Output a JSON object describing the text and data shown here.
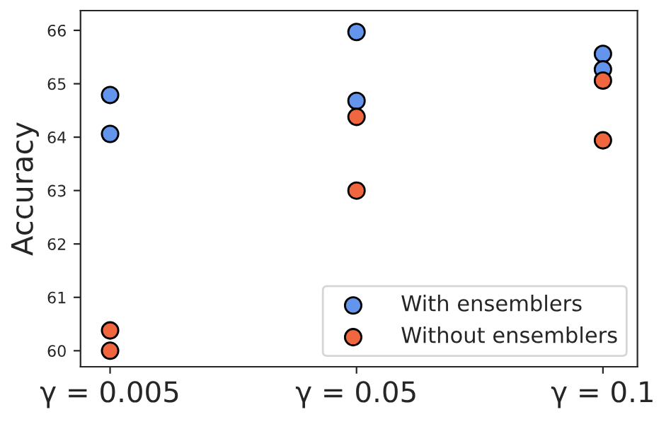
{
  "chart_data": {
    "type": "scatter",
    "ylabel": "Accuracy",
    "categories": [
      "γ = 0.005",
      "γ = 0.05",
      "γ = 0.1"
    ],
    "series": [
      {
        "name": "With ensemblers",
        "color": "#6495ed",
        "x": [
          "γ = 0.005",
          "γ = 0.005",
          "γ = 0.05",
          "γ = 0.05",
          "γ = 0.1",
          "γ = 0.1"
        ],
        "values": [
          64.79,
          64.06,
          65.97,
          64.68,
          65.56,
          65.27
        ]
      },
      {
        "name": "Without ensemblers",
        "color": "#f0663f",
        "x": [
          "γ = 0.005",
          "γ = 0.005",
          "γ = 0.05",
          "γ = 0.05",
          "γ = 0.1",
          "γ = 0.1"
        ],
        "values": [
          60.38,
          60.0,
          64.38,
          63.0,
          65.06,
          63.94
        ]
      }
    ],
    "ylim": [
      59.7,
      66.37
    ],
    "yticks": [
      60,
      61,
      62,
      63,
      64,
      65,
      66
    ],
    "marker": "circle",
    "legend": "bottom right",
    "grid": false
  }
}
